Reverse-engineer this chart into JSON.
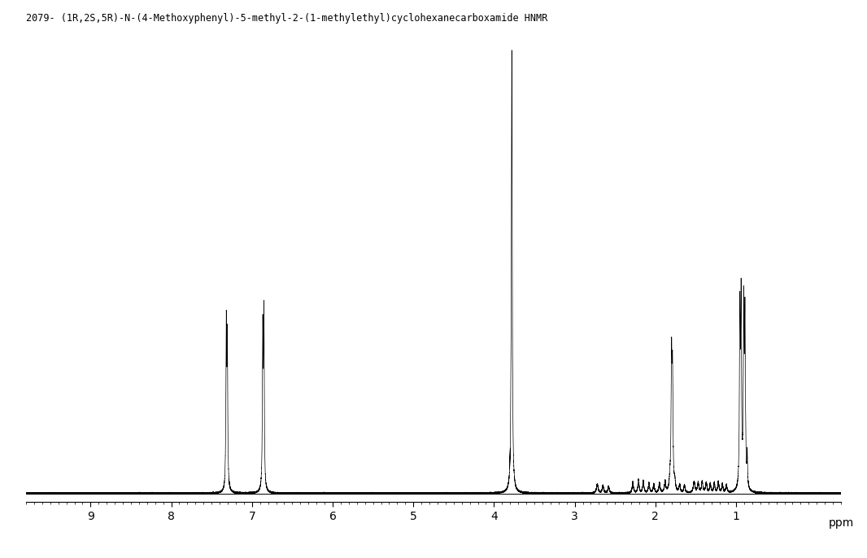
{
  "title": "2079- (1R,2S,5R)-N-(4-Methoxyphenyl)-5-methyl-2-(1-methylethyl)cyclohexanecarboxamide HNMR",
  "xlabel": "ppm",
  "xlim": [
    9.8,
    -0.3
  ],
  "ylim": [
    -0.008,
    0.42
  ],
  "xticks": [
    9,
    8,
    7,
    6,
    5,
    4,
    3,
    2,
    1
  ],
  "background_color": "#ffffff",
  "line_color": "#000000",
  "title_fontsize": 8.5,
  "noise_level": 0.0003
}
